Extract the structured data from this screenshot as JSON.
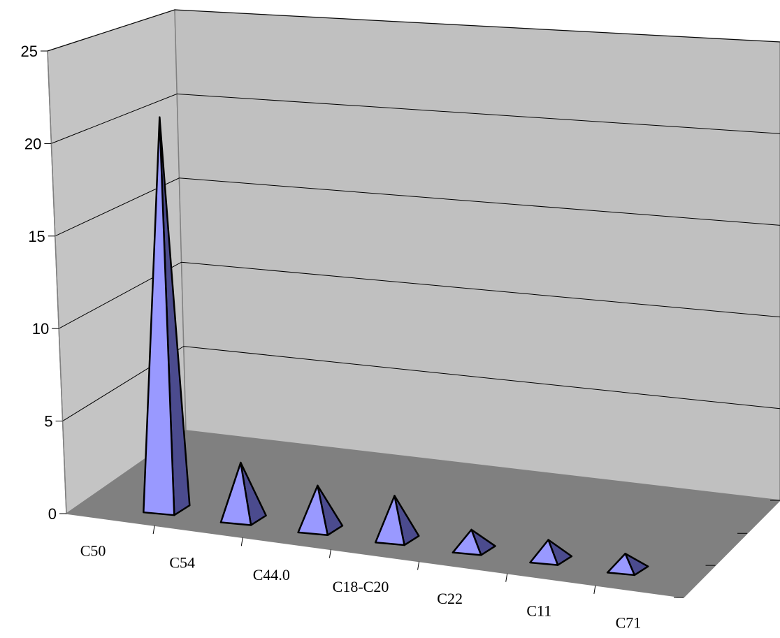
{
  "chart_data": {
    "type": "bar",
    "style": "3d-pyramid",
    "title": "",
    "xlabel": "",
    "ylabel": "",
    "categories": [
      "C50",
      "C54",
      "C44.0",
      "C18-C20",
      "C22",
      "C11",
      "C71"
    ],
    "series": [
      {
        "values": [
          21.3,
          3.0,
          2.3,
          2.3,
          1.0,
          1.0,
          0.8
        ]
      }
    ],
    "ylim": [
      0,
      25
    ],
    "yticks": [
      "0",
      "5",
      "10",
      "15",
      "20",
      "25"
    ],
    "grid": true,
    "legend": "none",
    "colors": {
      "bar_front": "#9999ff",
      "bar_side": "#4b4b8e",
      "back_wall": "#c0c0c0",
      "side_wall": "#c4c4c4",
      "floor": "#808080",
      "gridline": "#000000"
    }
  }
}
